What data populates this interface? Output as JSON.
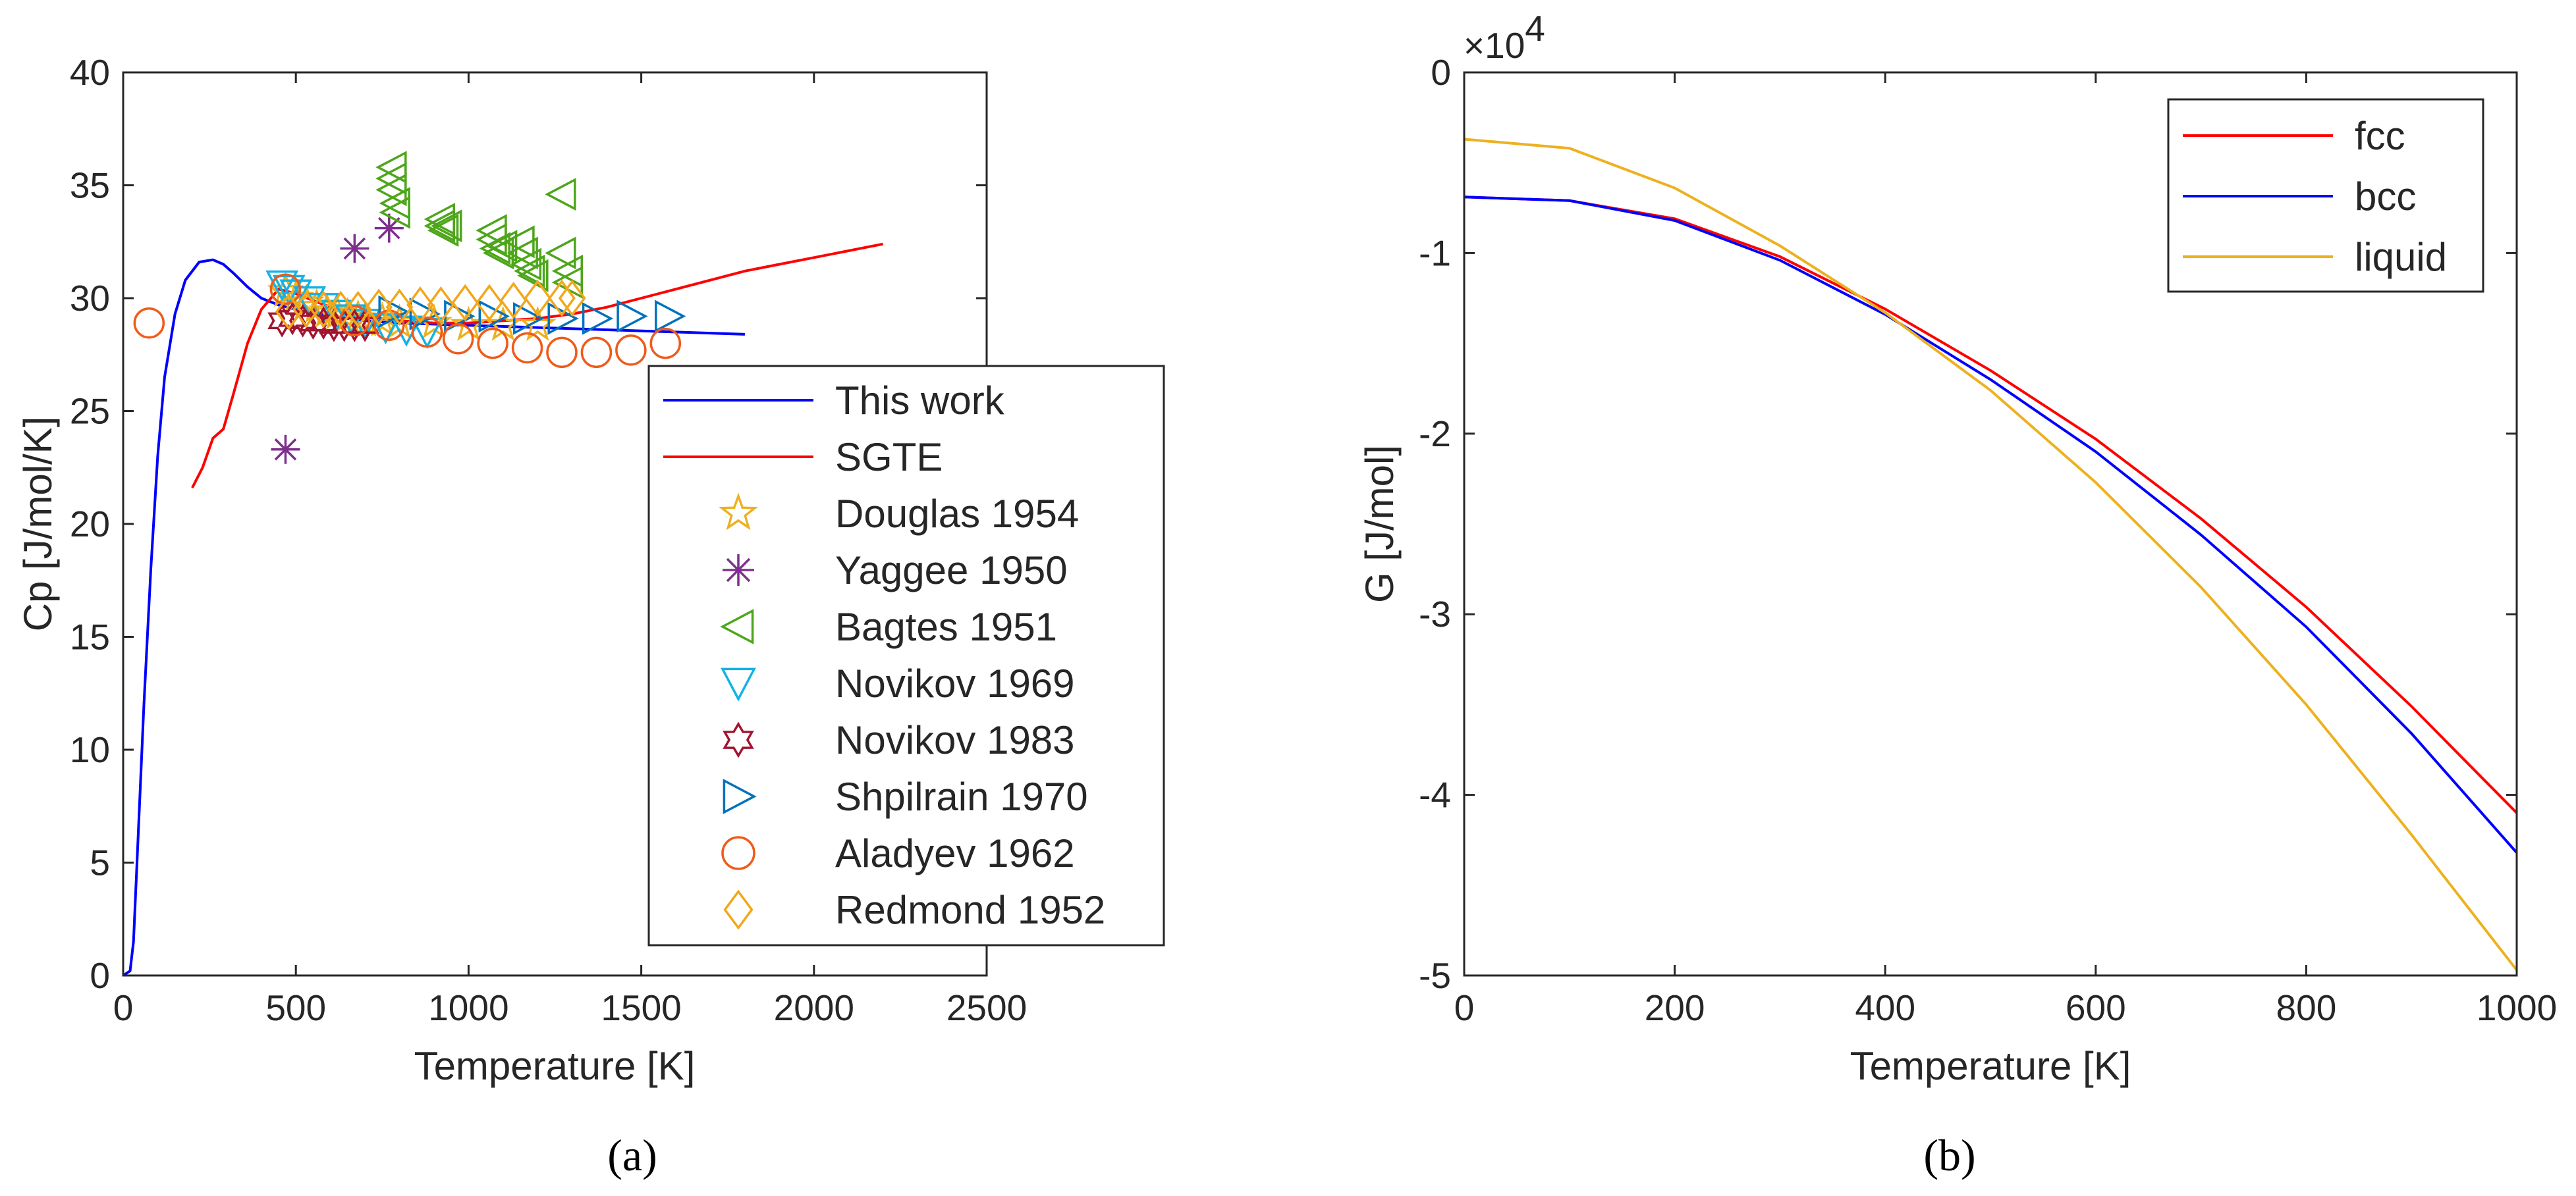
{
  "chart_data": [
    {
      "type": "line",
      "panel_label": "(a)",
      "xlabel": "Temperature [K]",
      "ylabel": "Cp [J/mol/K]",
      "xlim": [
        0,
        2500
      ],
      "ylim": [
        0,
        40
      ],
      "xticks": [
        0,
        500,
        1000,
        1500,
        2000,
        2500
      ],
      "yticks": [
        0,
        5,
        10,
        15,
        20,
        25,
        30,
        35,
        40
      ],
      "legend_position": "bottom-right",
      "series": [
        {
          "name": "This work",
          "kind": "line",
          "color": "#0000ff",
          "x": [
            0,
            20,
            30,
            40,
            60,
            80,
            100,
            120,
            150,
            180,
            220,
            260,
            290,
            320,
            360,
            400,
            450,
            500,
            600,
            700,
            800,
            1000,
            1200,
            1400,
            1600,
            1800
          ],
          "y": [
            0,
            0.2,
            1.5,
            5,
            12,
            18,
            23,
            26.5,
            29.3,
            30.8,
            31.6,
            31.7,
            31.5,
            31.1,
            30.5,
            30.0,
            29.7,
            29.5,
            29.2,
            29.0,
            28.9,
            28.8,
            28.7,
            28.6,
            28.5,
            28.4
          ]
        },
        {
          "name": "SGTE",
          "kind": "line",
          "color": "#ff0000",
          "x": [
            200,
            230,
            260,
            290,
            320,
            360,
            400,
            450,
            500,
            600,
            700,
            800,
            900,
            1000,
            1100,
            1200,
            1300,
            1400,
            1500,
            1600,
            1700,
            1800,
            1900,
            2000,
            2100,
            2200
          ],
          "y": [
            21.6,
            22.5,
            23.8,
            24.2,
            25.8,
            28.0,
            29.5,
            30.4,
            30.2,
            29.6,
            29.2,
            29.0,
            28.9,
            28.9,
            29.0,
            29.1,
            29.3,
            29.6,
            30.0,
            30.4,
            30.8,
            31.2,
            31.5,
            31.8,
            32.1,
            32.4
          ]
        },
        {
          "name": "Douglas 1954",
          "kind": "marker",
          "marker": "pentagram",
          "color": "#edb120",
          "x": [
            470,
            500,
            530,
            560,
            590,
            620,
            650,
            680,
            700,
            750,
            800,
            900,
            1000,
            1100,
            1200
          ],
          "y": [
            30.3,
            30.0,
            29.8,
            29.6,
            29.4,
            29.3,
            29.2,
            29.1,
            29.0,
            29.0,
            28.9,
            28.9,
            28.8,
            28.8,
            28.8
          ]
        },
        {
          "name": "Yaggee 1950",
          "kind": "marker",
          "marker": "asterisk",
          "color": "#7e2f8e",
          "x": [
            470,
            670,
            770
          ],
          "y": [
            23.3,
            32.2,
            33.1
          ]
        },
        {
          "name": "Bagtes 1951",
          "kind": "marker",
          "marker": "triangle-left",
          "color": "#4da61a",
          "x": [
            780,
            780,
            780,
            790,
            790,
            920,
            920,
            930,
            940,
            1070,
            1070,
            1080,
            1090,
            1100,
            1150,
            1160,
            1170,
            1180,
            1190,
            1270,
            1270,
            1290,
            1290
          ],
          "y": [
            35.8,
            35.3,
            34.8,
            34.2,
            33.8,
            33.5,
            33.2,
            33.0,
            33.2,
            33.0,
            32.6,
            32.2,
            32.0,
            32.3,
            32.5,
            32.0,
            31.5,
            31.2,
            31.0,
            34.6,
            32.0,
            31.2,
            30.7
          ]
        },
        {
          "name": "Novikov 1969",
          "kind": "marker",
          "marker": "triangle-down",
          "color": "#12b2e6",
          "x": [
            460,
            480,
            500,
            540,
            580,
            620,
            660,
            700,
            760,
            820,
            880
          ],
          "y": [
            30.6,
            30.4,
            30.2,
            29.9,
            29.6,
            29.3,
            29.1,
            28.9,
            28.7,
            28.6,
            28.5
          ]
        },
        {
          "name": "Novikov 1983",
          "kind": "marker",
          "marker": "hexagram",
          "color": "#a2142f",
          "x": [
            460,
            490,
            520,
            550,
            580,
            610,
            640,
            670,
            700
          ],
          "y": [
            29.0,
            29.1,
            29.0,
            28.9,
            28.9,
            28.8,
            28.8,
            28.8,
            28.8
          ]
        },
        {
          "name": "Shpilrain 1970",
          "kind": "marker",
          "marker": "triangle-right",
          "color": "#0072bd",
          "x": [
            780,
            870,
            970,
            1070,
            1170,
            1270,
            1370,
            1470,
            1580
          ],
          "y": [
            29.4,
            29.3,
            29.2,
            29.2,
            29.1,
            29.1,
            29.1,
            29.2,
            29.2
          ]
        },
        {
          "name": "Aladyev 1962",
          "kind": "marker",
          "marker": "circle",
          "color": "#ef5b1a",
          "x": [
            75,
            470,
            670,
            770,
            880,
            970,
            1070,
            1170,
            1270,
            1370,
            1470,
            1570
          ],
          "y": [
            28.9,
            30.4,
            29.0,
            28.8,
            28.5,
            28.2,
            28.0,
            27.8,
            27.6,
            27.6,
            27.7,
            28.0
          ]
        },
        {
          "name": "Redmond 1952",
          "kind": "marker",
          "marker": "diamond",
          "color": "#f2a71a",
          "x": [
            480,
            530,
            580,
            630,
            680,
            740,
            800,
            860,
            920,
            990,
            1060,
            1130,
            1200,
            1270,
            1300
          ],
          "y": [
            29.4,
            29.5,
            29.5,
            29.5,
            29.5,
            29.6,
            29.6,
            29.7,
            29.7,
            29.8,
            29.8,
            29.9,
            30.0,
            30.0,
            30.0
          ]
        }
      ]
    },
    {
      "type": "line",
      "panel_label": "(b)",
      "xlabel": "Temperature [K]",
      "ylabel": "G [J/mol]",
      "xlim": [
        0,
        1000
      ],
      "ylim": [
        -5,
        0
      ],
      "y_multiplier": "×10",
      "y_multiplier_exponent": "4",
      "xticks": [
        0,
        200,
        400,
        600,
        800,
        1000
      ],
      "yticks": [
        0,
        -1,
        -2,
        -3,
        -4,
        -5
      ],
      "legend_position": "top-right",
      "series": [
        {
          "name": "fcc",
          "color": "#ff0000",
          "x": [
            0,
            100,
            200,
            300,
            400,
            500,
            600,
            700,
            800,
            900,
            1000
          ],
          "y": [
            -0.69,
            -0.71,
            -0.81,
            -1.02,
            -1.31,
            -1.65,
            -2.03,
            -2.47,
            -2.96,
            -3.51,
            -4.1
          ]
        },
        {
          "name": "bcc",
          "color": "#0000ff",
          "x": [
            0,
            100,
            200,
            300,
            400,
            500,
            600,
            700,
            800,
            900,
            1000
          ],
          "y": [
            -0.69,
            -0.71,
            -0.82,
            -1.04,
            -1.34,
            -1.7,
            -2.1,
            -2.56,
            -3.07,
            -3.66,
            -4.32
          ]
        },
        {
          "name": "liquid",
          "color": "#edb120",
          "x": [
            0,
            100,
            200,
            300,
            400,
            500,
            600,
            700,
            800,
            900,
            1000
          ],
          "y": [
            -0.37,
            -0.42,
            -0.64,
            -0.96,
            -1.33,
            -1.76,
            -2.27,
            -2.85,
            -3.5,
            -4.22,
            -4.97
          ]
        }
      ]
    }
  ]
}
